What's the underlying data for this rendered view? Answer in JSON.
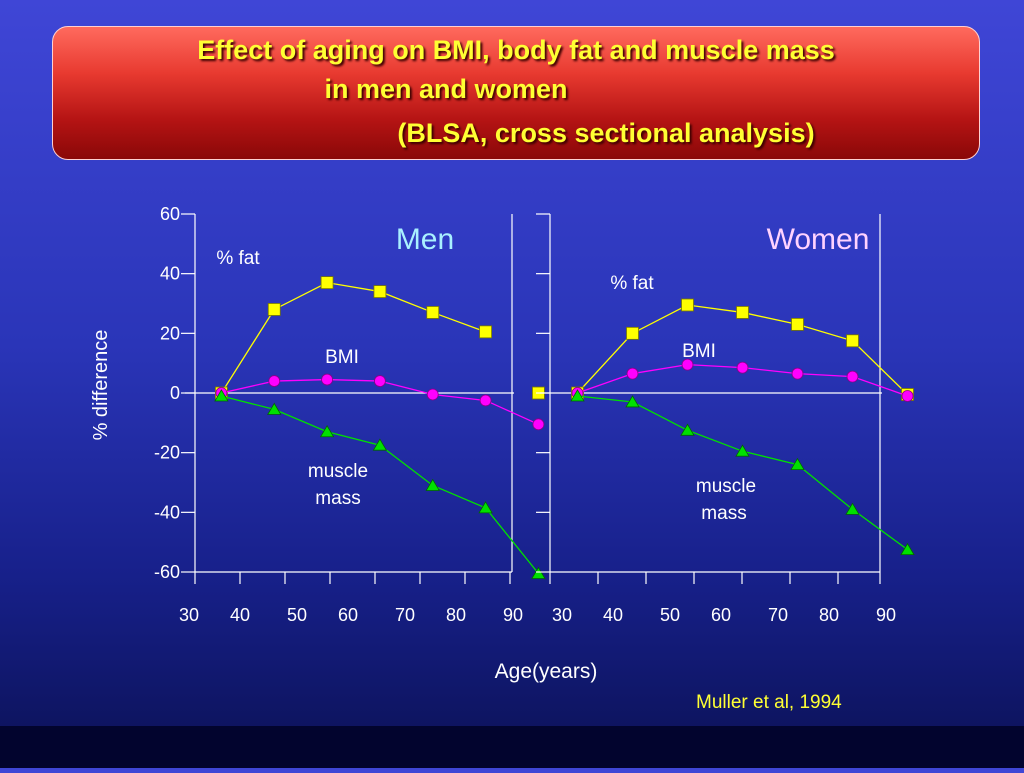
{
  "title": {
    "line1": "Effect of aging on BMI, body fat and muscle mass",
    "line2": "in men and women",
    "line3": "(BLSA, cross sectional analysis)"
  },
  "credit": "Muller et al, 1994",
  "colors": {
    "fat": "#ffff00",
    "bmi": "#ff00ff",
    "muscle": "#00e000",
    "text": "#ffffff",
    "title_text": "#ffff33"
  },
  "chart_data": {
    "type": "line",
    "ylabel": "% difference",
    "xlabel": "Age(years)",
    "ylim": [
      -60,
      60
    ],
    "yticks": [
      60,
      40,
      20,
      0,
      -20,
      -40,
      -60
    ],
    "xticks": [
      30,
      40,
      50,
      60,
      70,
      80,
      90
    ],
    "grid": false,
    "panels": [
      {
        "title": "Men",
        "annotations": {
          "fat": "% fat",
          "bmi": "BMI",
          "muscle_line1": "muscle",
          "muscle_line2": "mass"
        },
        "series": [
          {
            "name": "% fat",
            "marker": "square",
            "color": "#ffff00",
            "x": [
              35,
              45,
              55,
              65,
              75,
              85
            ],
            "y": [
              0,
              28,
              37,
              34,
              27,
              20.5
            ]
          },
          {
            "name": "BMI",
            "marker": "circle",
            "color": "#ff00ff",
            "x": [
              35,
              45,
              55,
              65,
              75,
              85,
              95
            ],
            "y": [
              0,
              4,
              4.5,
              4,
              -0.5,
              -2.5,
              -10.5
            ]
          },
          {
            "name": "muscle mass",
            "marker": "triangle",
            "color": "#00e000",
            "x": [
              35,
              45,
              55,
              65,
              75,
              85,
              95
            ],
            "y": [
              -1,
              -5.5,
              -13,
              -17.5,
              -31,
              -38.5,
              -60.5
            ]
          }
        ],
        "extra_points": [
          {
            "series": "% fat",
            "x": 95,
            "y": 0
          }
        ]
      },
      {
        "title": "Women",
        "annotations": {
          "fat": "% fat",
          "bmi": "BMI",
          "muscle_line1": "muscle",
          "muscle_line2": "mass"
        },
        "series": [
          {
            "name": "% fat",
            "marker": "square",
            "color": "#ffff00",
            "x": [
              35,
              45,
              55,
              65,
              75,
              85,
              95
            ],
            "y": [
              0,
              20,
              29.5,
              27,
              23,
              17.5,
              -0.5
            ]
          },
          {
            "name": "BMI",
            "marker": "circle",
            "color": "#ff00ff",
            "x": [
              35,
              45,
              55,
              65,
              75,
              85,
              95
            ],
            "y": [
              0,
              6.5,
              9.5,
              8.5,
              6.5,
              5.5,
              -1
            ]
          },
          {
            "name": "muscle mass",
            "marker": "triangle",
            "color": "#00e000",
            "x": [
              35,
              45,
              55,
              65,
              75,
              85,
              95
            ],
            "y": [
              -1,
              -3,
              -12.5,
              -19.5,
              -24,
              -39,
              -52.5
            ]
          }
        ]
      }
    ]
  }
}
